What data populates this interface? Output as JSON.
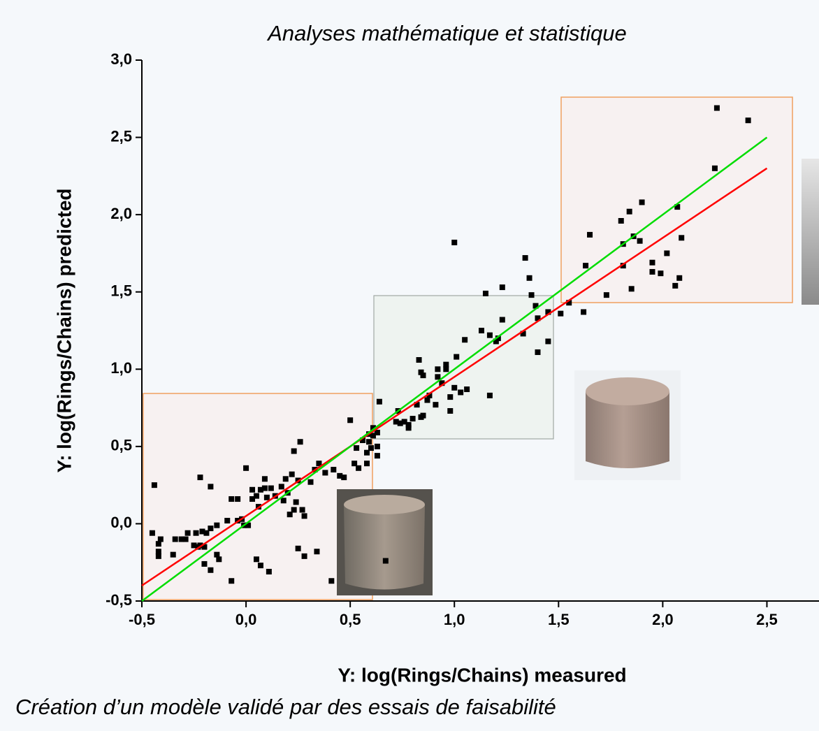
{
  "chart_data": {
    "type": "scatter",
    "title": "Analyses mathématique et statistique",
    "x_label": "Y: log(Rings/Chains) measured",
    "y_label": "Y: log(Rings/Chains) predicted",
    "caption": "Création d’un modèle validé par des essais de faisabilité",
    "xlim": [
      -0.5,
      2.75
    ],
    "ylim": [
      -0.5,
      3.0
    ],
    "xticks": [
      {
        "value": -0.5,
        "label": "-0,5"
      },
      {
        "value": 0,
        "label": "0,0"
      },
      {
        "value": 0.5,
        "label": "0,5"
      },
      {
        "value": 1,
        "label": "1,0"
      },
      {
        "value": 1.5,
        "label": "1,5"
      },
      {
        "value": 2,
        "label": "2,0"
      },
      {
        "value": 2.5,
        "label": "2,5"
      }
    ],
    "yticks": [
      {
        "value": -0.5,
        "label": "-0,5"
      },
      {
        "value": 0,
        "label": "0,0"
      },
      {
        "value": 0.5,
        "label": "0,5"
      },
      {
        "value": 1,
        "label": "1,0"
      },
      {
        "value": 1.5,
        "label": "1,5"
      },
      {
        "value": 2,
        "label": "2,0"
      },
      {
        "value": 2.5,
        "label": "2,5"
      },
      {
        "value": 3,
        "label": "3,0"
      }
    ],
    "points": {
      "color": "#000000",
      "x": [
        2.26,
        2.41,
        2.25,
        1.9,
        1.84,
        1.8,
        2.07,
        1.65,
        1.81,
        1.89,
        1.86,
        2.09,
        2.02,
        1.95,
        1.63,
        1.81,
        1.95,
        1.99,
        2.08,
        2.06,
        1.85,
        1.73,
        1.55,
        1.51,
        1.62,
        1.45,
        1.34,
        1.36,
        1.37,
        1.39,
        1.4,
        1.45,
        1.4,
        1.33,
        1.23,
        1.15,
        1.23,
        1.13,
        1.17,
        1.2,
        1.21,
        1.0,
        1.05,
        1.17,
        1.01,
        1.06,
        1.03,
        0.96,
        0.96,
        0.92,
        0.83,
        0.84,
        0.85,
        0.92,
        0.94,
        1.0,
        0.98,
        0.98,
        0.91,
        0.87,
        0.88,
        0.82,
        0.8,
        0.84,
        0.85,
        0.73,
        0.72,
        0.74,
        0.76,
        0.78,
        0.78,
        0.64,
        0.63,
        0.61,
        0.59,
        0.6,
        0.58,
        0.63,
        0.63,
        0.61,
        0.59,
        0.5,
        0.52,
        0.54,
        0.58,
        0.53,
        0.56,
        0.26,
        0.23,
        0.35,
        0.33,
        0.42,
        0.45,
        0.47,
        0.38,
        0.31,
        0.25,
        0.19,
        0.22,
        0.2,
        0.17,
        0.12,
        0.09,
        0.07,
        0.1,
        0.14,
        0.05,
        0.03,
        0.03,
        0.0,
        -0.07,
        -0.04,
        0.06,
        0.23,
        0.27,
        0.28,
        0.21,
        0.18,
        0.24,
        0.09,
        -0.22,
        -0.17,
        -0.44,
        -0.02,
        -0.04,
        0.01,
        -0.01,
        -0.09,
        -0.14,
        -0.17,
        -0.21,
        -0.24,
        -0.19,
        -0.28,
        -0.29,
        -0.31,
        -0.34,
        -0.25,
        -0.45,
        -0.41,
        -0.42,
        -0.42,
        -0.42,
        -0.35,
        -0.22,
        -0.2,
        -0.14,
        -0.13,
        -0.17,
        -0.2,
        -0.07,
        0.05,
        0.07,
        0.11,
        0.25,
        0.28,
        0.34,
        0.41,
        0.67,
        -0.23
      ],
      "y": [
        2.69,
        2.61,
        2.3,
        2.08,
        2.02,
        1.96,
        2.05,
        1.87,
        1.81,
        1.83,
        1.86,
        1.85,
        1.75,
        1.69,
        1.67,
        1.67,
        1.63,
        1.62,
        1.59,
        1.54,
        1.52,
        1.48,
        1.43,
        1.36,
        1.37,
        1.37,
        1.72,
        1.59,
        1.48,
        1.41,
        1.33,
        1.18,
        1.11,
        1.23,
        1.53,
        1.49,
        1.32,
        1.25,
        1.22,
        1.18,
        1.2,
        1.82,
        1.19,
        0.83,
        1.08,
        0.87,
        0.85,
        1.0,
        1.03,
        1.0,
        1.06,
        0.98,
        0.96,
        0.95,
        0.91,
        0.88,
        0.82,
        0.73,
        0.77,
        0.8,
        0.83,
        0.77,
        0.68,
        0.69,
        0.7,
        0.73,
        0.66,
        0.65,
        0.66,
        0.64,
        0.62,
        0.79,
        0.59,
        0.57,
        0.53,
        0.49,
        0.46,
        0.44,
        0.5,
        0.62,
        0.58,
        0.67,
        0.39,
        0.36,
        0.39,
        0.49,
        0.54,
        0.53,
        0.47,
        0.39,
        0.35,
        0.35,
        0.31,
        0.3,
        0.33,
        0.27,
        0.28,
        0.29,
        0.32,
        0.2,
        0.24,
        0.23,
        0.23,
        0.22,
        0.17,
        0.18,
        0.18,
        0.22,
        0.16,
        0.36,
        0.16,
        0.16,
        0.11,
        0.09,
        0.09,
        0.05,
        0.06,
        0.15,
        0.14,
        0.29,
        0.3,
        0.24,
        0.25,
        0.03,
        0.02,
        -0.01,
        -0.01,
        0.02,
        -0.01,
        -0.03,
        -0.05,
        -0.06,
        -0.06,
        -0.06,
        -0.1,
        -0.1,
        -0.1,
        -0.14,
        -0.06,
        -0.1,
        -0.13,
        -0.18,
        -0.21,
        -0.2,
        -0.14,
        -0.15,
        -0.2,
        -0.23,
        -0.3,
        -0.26,
        -0.37,
        -0.23,
        -0.27,
        -0.31,
        -0.16,
        -0.21,
        -0.18,
        -0.37,
        -0.24,
        -0.15
      ]
    },
    "lines": [
      {
        "color": "#ff0000",
        "x": [
          -0.5,
          2.5
        ],
        "y": [
          -0.4,
          2.3
        ]
      },
      {
        "color": "#00dd00",
        "x": [
          -0.5,
          2.5
        ],
        "y": [
          -0.5,
          2.5
        ]
      }
    ]
  }
}
